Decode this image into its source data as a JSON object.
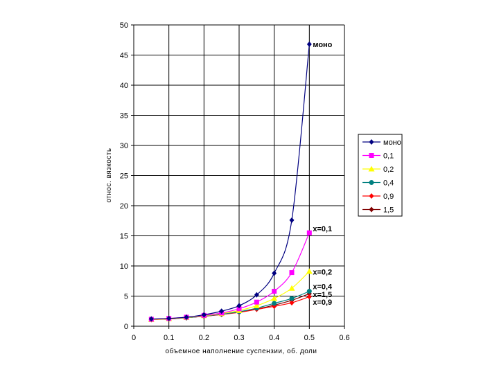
{
  "chart_data": {
    "type": "line",
    "title": "",
    "xlabel": "объемное наполнение суспензии, об. доли",
    "ylabel": "относ. вязкость",
    "xlim": [
      0,
      0.6
    ],
    "ylim": [
      0,
      50
    ],
    "x_ticks": [
      "0",
      "0.1",
      "0.2",
      "0.3",
      "0.4",
      "0.5",
      "0.6"
    ],
    "y_ticks": [
      "0",
      "5",
      "10",
      "15",
      "20",
      "25",
      "30",
      "35",
      "40",
      "45",
      "50"
    ],
    "grid": "vertical-and-horizontal",
    "legend_position": "right",
    "series": [
      {
        "name": "моно",
        "color": "#000080",
        "marker": "diamond",
        "x": [
          0.05,
          0.1,
          0.15,
          0.2,
          0.25,
          0.3,
          0.35,
          0.4,
          0.45,
          0.5
        ],
        "y": [
          1.2,
          1.3,
          1.5,
          1.9,
          2.5,
          3.4,
          5.2,
          8.8,
          17.6,
          46.8
        ]
      },
      {
        "name": "0,1",
        "color": "#FF00FF",
        "marker": "square",
        "x": [
          0.05,
          0.1,
          0.15,
          0.2,
          0.25,
          0.3,
          0.35,
          0.4,
          0.45,
          0.5
        ],
        "y": [
          1.15,
          1.3,
          1.5,
          1.8,
          2.2,
          2.9,
          4.0,
          5.8,
          8.9,
          15.5
        ]
      },
      {
        "name": "0,2",
        "color": "#FFFF00",
        "marker": "triangle",
        "x": [
          0.05,
          0.1,
          0.15,
          0.2,
          0.25,
          0.3,
          0.35,
          0.4,
          0.45,
          0.5
        ],
        "y": [
          1.1,
          1.25,
          1.45,
          1.75,
          2.1,
          2.6,
          3.4,
          4.6,
          6.3,
          9.1
        ]
      },
      {
        "name": "0,4",
        "color": "#008080",
        "marker": "circle",
        "x": [
          0.05,
          0.1,
          0.15,
          0.2,
          0.25,
          0.3,
          0.35,
          0.4,
          0.45,
          0.5
        ],
        "y": [
          1.1,
          1.25,
          1.4,
          1.7,
          2.0,
          2.4,
          3.0,
          3.8,
          4.6,
          5.8
        ]
      },
      {
        "name": "0,9",
        "color": "#FF0000",
        "marker": "diamond",
        "x": [
          0.05,
          0.1,
          0.15,
          0.2,
          0.25,
          0.3,
          0.35,
          0.4,
          0.45,
          0.5
        ],
        "y": [
          1.1,
          1.2,
          1.4,
          1.65,
          1.95,
          2.3,
          2.8,
          3.3,
          3.9,
          4.9
        ]
      },
      {
        "name": "1,5",
        "color": "#800000",
        "marker": "diamond",
        "x": [
          0.05,
          0.1,
          0.15,
          0.2,
          0.25,
          0.3,
          0.35,
          0.4,
          0.45,
          0.5
        ],
        "y": [
          1.1,
          1.2,
          1.4,
          1.65,
          1.95,
          2.35,
          2.85,
          3.5,
          4.3,
          5.4
        ]
      }
    ],
    "annotations": [
      {
        "text": "моно",
        "x": 0.5,
        "y": 46.8
      },
      {
        "text": "x=0,1",
        "x": 0.5,
        "y": 16.2
      },
      {
        "text": "x=0,2",
        "x": 0.5,
        "y": 9.0
      },
      {
        "text": "x=0,4",
        "x": 0.5,
        "y": 6.6
      },
      {
        "text": "x=1,5",
        "x": 0.5,
        "y": 5.3
      },
      {
        "text": "x=0,9",
        "x": 0.5,
        "y": 4.0
      }
    ]
  }
}
